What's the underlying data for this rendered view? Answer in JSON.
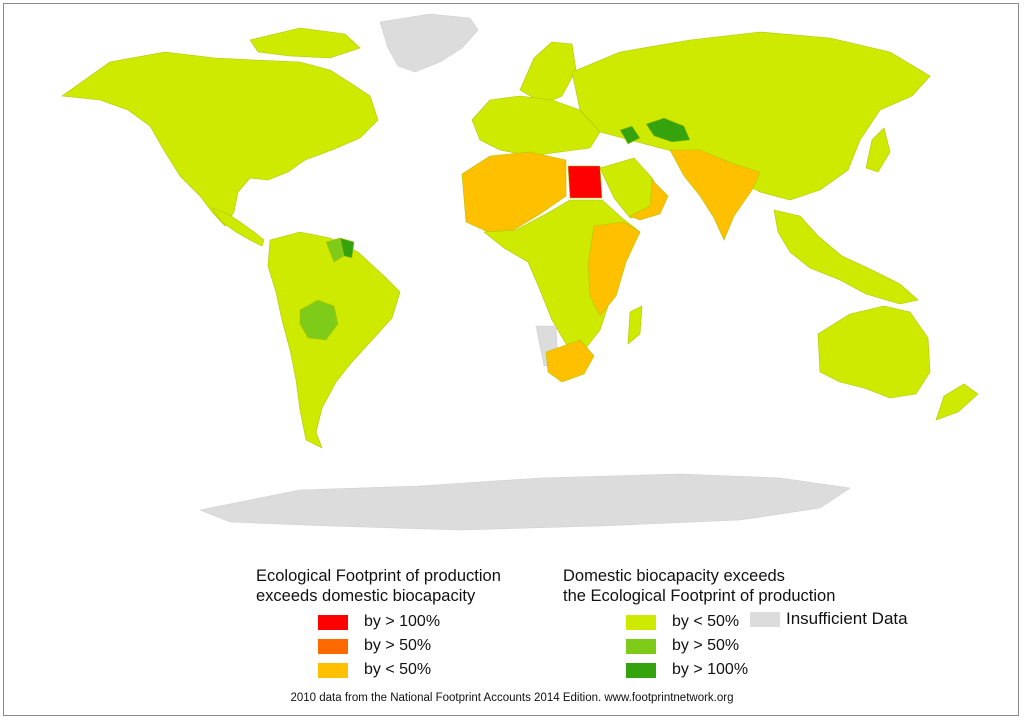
{
  "colors": {
    "exceeds_100": "#ff0000",
    "exceeds_50": "#ff6a00",
    "exceeds_lt50": "#ffc000",
    "bio_lt50": "#cdea00",
    "bio_gt50": "#7ecb1a",
    "bio_gt100": "#34a30e",
    "insufficient": "#dcdcdc",
    "border": "#b5c400"
  },
  "legend": {
    "left": {
      "heading_line1": "Ecological Footprint of production",
      "heading_line2": "exceeds domestic biocapacity",
      "items": [
        {
          "label": "by > 100%",
          "color": "#ff0000"
        },
        {
          "label": "by > 50%",
          "color": "#ff6a00"
        },
        {
          "label": "by < 50%",
          "color": "#ffc000"
        }
      ]
    },
    "right": {
      "heading_line1": "Domestic biocapacity exceeds",
      "heading_line2": "the Ecological Footprint of production",
      "items": [
        {
          "label": "by < 50%",
          "color": "#cdea00"
        },
        {
          "label": "by > 50%",
          "color": "#7ecb1a"
        },
        {
          "label": "by > 100%",
          "color": "#34a30e"
        }
      ]
    },
    "insufficient": {
      "label": "Insufficient Data",
      "color": "#dcdcdc"
    }
  },
  "footer": "2010 data from the National Footprint Accounts 2014 Edition. www.footprintnetwork.org",
  "map_regions": [
    {
      "name": "north-america",
      "category": "bio_lt50"
    },
    {
      "name": "greenland",
      "category": "insufficient"
    },
    {
      "name": "central-america",
      "category": "bio_lt50"
    },
    {
      "name": "south-america",
      "category": "bio_lt50"
    },
    {
      "name": "bolivia",
      "category": "bio_gt50"
    },
    {
      "name": "guyana",
      "category": "bio_gt50"
    },
    {
      "name": "suriname",
      "category": "bio_gt100"
    },
    {
      "name": "europe",
      "category": "bio_lt50"
    },
    {
      "name": "scandinavia",
      "category": "bio_lt50"
    },
    {
      "name": "russia-asia",
      "category": "bio_lt50"
    },
    {
      "name": "north-africa",
      "category": "exceeds_lt50"
    },
    {
      "name": "egypt",
      "category": "exceeds_100"
    },
    {
      "name": "arabian-peninsula",
      "category": "bio_lt50"
    },
    {
      "name": "oman-yemen",
      "category": "exceeds_lt50"
    },
    {
      "name": "india",
      "category": "exceeds_lt50"
    },
    {
      "name": "central-asia-green",
      "category": "bio_gt100"
    },
    {
      "name": "sub-saharan-africa",
      "category": "bio_lt50"
    },
    {
      "name": "east-africa",
      "category": "exceeds_lt50"
    },
    {
      "name": "south-africa",
      "category": "exceeds_lt50"
    },
    {
      "name": "namibia",
      "category": "insufficient"
    },
    {
      "name": "madagascar",
      "category": "bio_lt50"
    },
    {
      "name": "southeast-asia",
      "category": "bio_lt50"
    },
    {
      "name": "japan",
      "category": "bio_lt50"
    },
    {
      "name": "australia",
      "category": "bio_lt50"
    },
    {
      "name": "new-zealand",
      "category": "bio_lt50"
    },
    {
      "name": "antarctica",
      "category": "insufficient"
    }
  ]
}
